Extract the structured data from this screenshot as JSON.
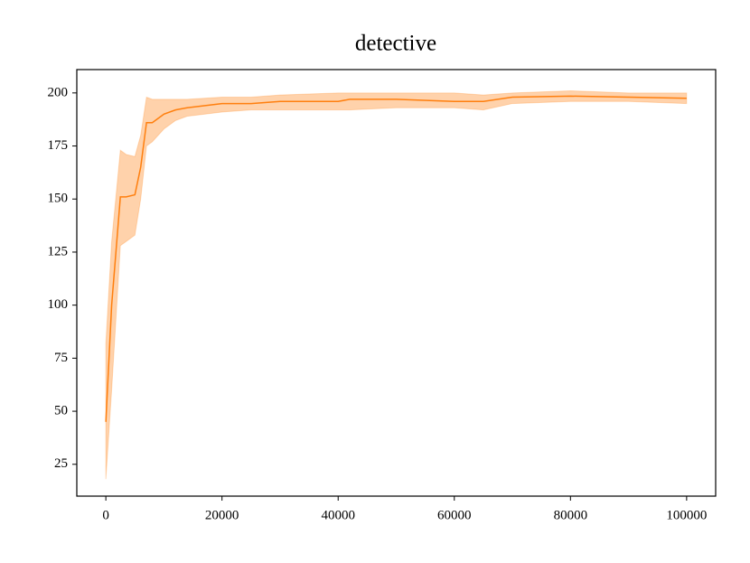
{
  "chart_data": {
    "type": "line",
    "title": "detective",
    "x": [
      0,
      1000,
      2500,
      3500,
      5000,
      6000,
      7000,
      8000,
      10000,
      12000,
      14000,
      20000,
      25000,
      30000,
      40000,
      42000,
      50000,
      60000,
      65000,
      70000,
      80000,
      90000,
      100000
    ],
    "series": [
      {
        "color": "#ff7f0e",
        "values": [
          45,
          100,
          151,
          151,
          152,
          165,
          186,
          186,
          190,
          192,
          193,
          195,
          195,
          196,
          196,
          197,
          197,
          196,
          196,
          198,
          198.5,
          198,
          197.5
        ],
        "lower": [
          18,
          60,
          128,
          130,
          133,
          150,
          175,
          177,
          183,
          187,
          189,
          191,
          192,
          192,
          192,
          192,
          193,
          193,
          192,
          195,
          196,
          196,
          195
        ],
        "upper": [
          82,
          130,
          173,
          171,
          170,
          180,
          198,
          197,
          197,
          197,
          197,
          198,
          198,
          199,
          200,
          200,
          200,
          200,
          199,
          200,
          201,
          200,
          200
        ]
      }
    ],
    "xlim": [
      -5000,
      105000
    ],
    "ylim": [
      10,
      211
    ],
    "xticks": [
      0,
      20000,
      40000,
      60000,
      80000,
      100000
    ],
    "yticks": [
      25,
      50,
      75,
      100,
      125,
      150,
      175,
      200
    ]
  }
}
